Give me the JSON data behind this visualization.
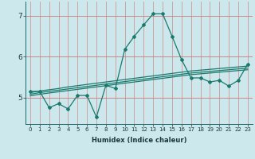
{
  "xlabel": "Humidex (Indice chaleur)",
  "bg_color": "#cce8ec",
  "line_color": "#1a7a6e",
  "vgrid_color": "#d08888",
  "hgrid_color": "#c87878",
  "x_data": [
    0,
    1,
    2,
    3,
    4,
    5,
    6,
    7,
    8,
    9,
    10,
    11,
    12,
    13,
    14,
    15,
    16,
    17,
    18,
    19,
    20,
    21,
    22,
    23
  ],
  "y_main": [
    5.15,
    5.15,
    4.75,
    4.85,
    4.72,
    5.05,
    5.05,
    4.52,
    5.3,
    5.22,
    6.18,
    6.5,
    6.78,
    7.05,
    7.05,
    6.5,
    5.93,
    5.48,
    5.48,
    5.38,
    5.42,
    5.28,
    5.42,
    5.82
  ],
  "trend1": [
    5.12,
    5.16,
    5.19,
    5.22,
    5.26,
    5.29,
    5.32,
    5.35,
    5.38,
    5.41,
    5.44,
    5.47,
    5.5,
    5.53,
    5.56,
    5.59,
    5.62,
    5.65,
    5.67,
    5.69,
    5.71,
    5.73,
    5.75,
    5.77
  ],
  "trend2": [
    5.08,
    5.12,
    5.15,
    5.18,
    5.21,
    5.24,
    5.27,
    5.3,
    5.33,
    5.36,
    5.39,
    5.42,
    5.45,
    5.48,
    5.51,
    5.54,
    5.57,
    5.6,
    5.62,
    5.64,
    5.66,
    5.68,
    5.7,
    5.72
  ],
  "trend3": [
    5.04,
    5.08,
    5.11,
    5.14,
    5.17,
    5.2,
    5.23,
    5.26,
    5.29,
    5.32,
    5.35,
    5.38,
    5.41,
    5.44,
    5.47,
    5.5,
    5.53,
    5.56,
    5.58,
    5.6,
    5.62,
    5.64,
    5.66,
    5.68
  ],
  "ylim": [
    4.35,
    7.35
  ],
  "yticks": [
    5,
    6,
    7
  ],
  "xlim": [
    -0.5,
    23.5
  ]
}
